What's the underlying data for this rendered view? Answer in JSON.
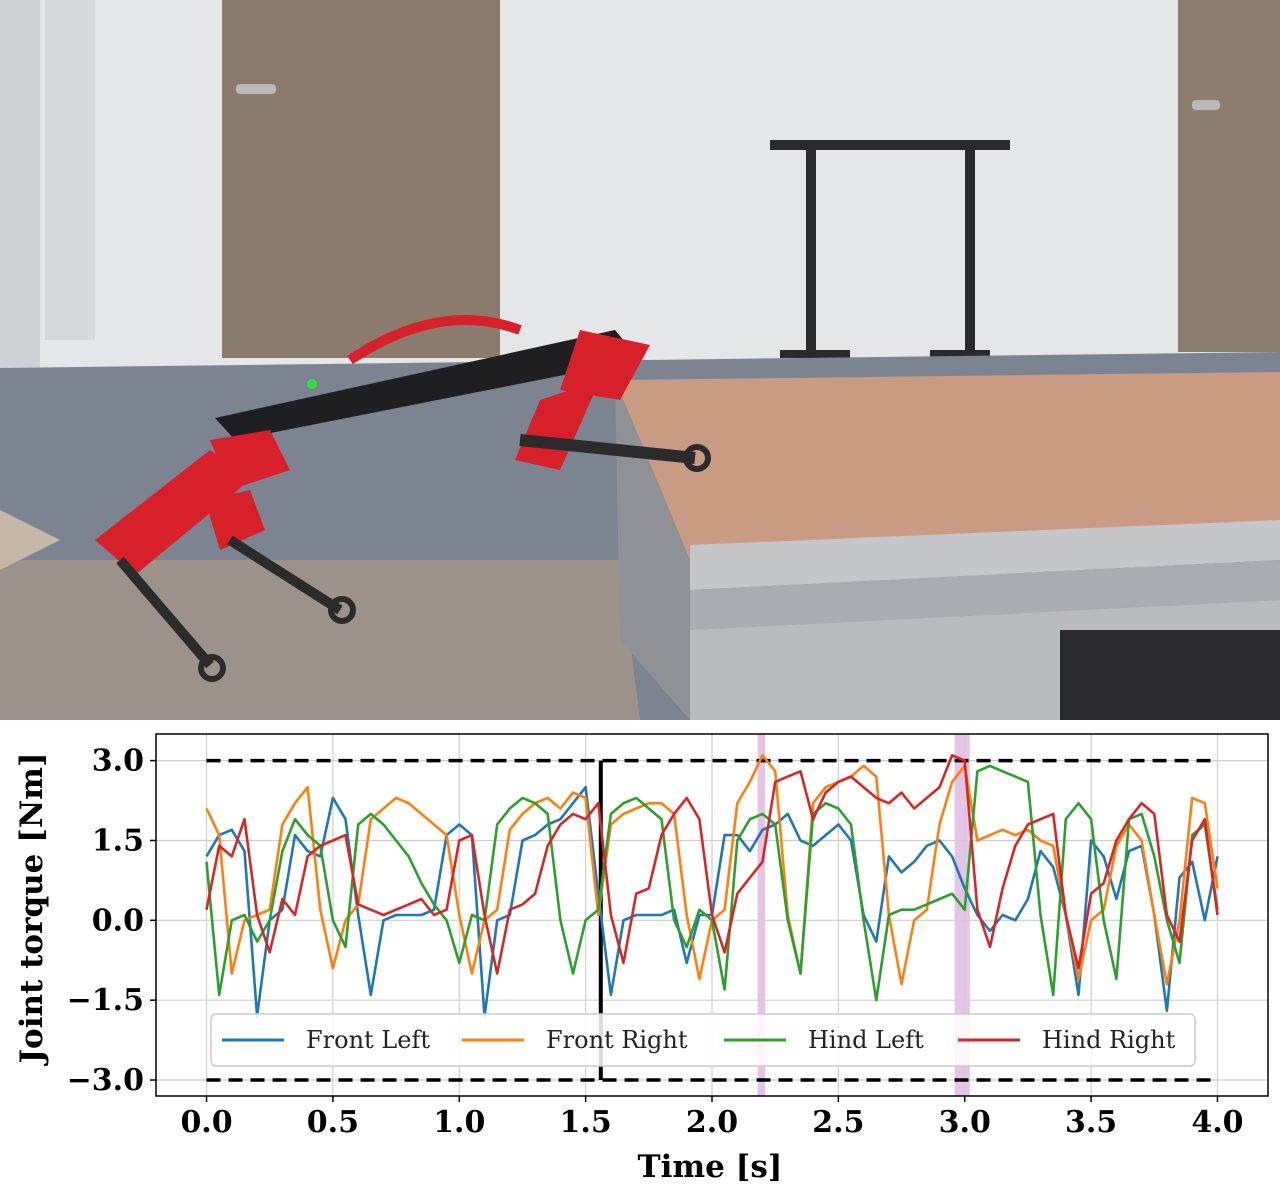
{
  "photo": {
    "scene": "quadruped-robot-climbing-platform"
  },
  "chart_data": {
    "type": "line",
    "title": "",
    "xlabel": "Time [s]",
    "ylabel": "Joint torque [Nm]",
    "xlim": [
      -0.2,
      4.2
    ],
    "ylim": [
      -3.3,
      3.5
    ],
    "xticks": [
      "0.0",
      "0.5",
      "1.0",
      "1.5",
      "2.0",
      "2.5",
      "3.0",
      "3.5",
      "4.0"
    ],
    "yticks": [
      "3.0",
      "1.5",
      "0.0",
      "−1.5",
      "−3.0"
    ],
    "xtick_values": [
      0.0,
      0.5,
      1.0,
      1.5,
      2.0,
      2.5,
      3.0,
      3.5,
      4.0
    ],
    "ytick_values": [
      3.0,
      1.5,
      0.0,
      -1.5,
      -3.0
    ],
    "grid": true,
    "legend_location": "lower-center",
    "torque_limits": [
      3.0,
      -3.0
    ],
    "vertical_marker_x": 1.56,
    "highlight_spans": [
      [
        2.18,
        2.21
      ],
      [
        2.96,
        3.02
      ]
    ],
    "series": [
      {
        "name": "Front Left",
        "color": "#1f77b4",
        "x": [
          0.0,
          0.05,
          0.1,
          0.15,
          0.2,
          0.25,
          0.3,
          0.35,
          0.4,
          0.45,
          0.5,
          0.55,
          0.6,
          0.65,
          0.7,
          0.75,
          0.8,
          0.85,
          0.9,
          0.95,
          1.0,
          1.05,
          1.1,
          1.15,
          1.2,
          1.25,
          1.3,
          1.35,
          1.4,
          1.45,
          1.5,
          1.55,
          1.6,
          1.65,
          1.7,
          1.75,
          1.8,
          1.85,
          1.9,
          1.95,
          2.0,
          2.05,
          2.1,
          2.15,
          2.2,
          2.25,
          2.3,
          2.35,
          2.4,
          2.45,
          2.5,
          2.55,
          2.6,
          2.65,
          2.7,
          2.75,
          2.8,
          2.85,
          2.9,
          2.95,
          3.0,
          3.05,
          3.1,
          3.15,
          3.2,
          3.25,
          3.3,
          3.35,
          3.4,
          3.45,
          3.5,
          3.55,
          3.6,
          3.65,
          3.7,
          3.75,
          3.8,
          3.85,
          3.9,
          3.95,
          4.0
        ],
        "y": [
          1.2,
          1.6,
          1.7,
          1.3,
          -1.8,
          0.0,
          0.2,
          1.6,
          1.3,
          1.2,
          2.3,
          1.9,
          0.1,
          -1.4,
          0.0,
          0.1,
          0.1,
          0.1,
          0.2,
          1.6,
          1.8,
          1.6,
          -1.8,
          0.0,
          0.1,
          1.5,
          1.6,
          1.8,
          1.9,
          2.2,
          2.5,
          0.5,
          -1.4,
          0.0,
          0.1,
          0.1,
          0.1,
          0.2,
          -0.8,
          0.1,
          0.1,
          1.6,
          1.6,
          1.3,
          1.7,
          1.8,
          2.0,
          1.5,
          1.4,
          1.6,
          1.8,
          1.5,
          0.1,
          -0.4,
          1.2,
          0.9,
          1.1,
          1.4,
          1.5,
          1.2,
          0.6,
          0.1,
          -0.2,
          0.1,
          0.0,
          0.4,
          1.3,
          1.0,
          0.1,
          -1.4,
          1.5,
          1.2,
          0.4,
          1.3,
          1.4,
          0.1,
          -1.7,
          0.8,
          1.1,
          0.0,
          1.2
        ]
      },
      {
        "name": "Front Right",
        "color": "#ff7f0e",
        "x": [
          0.0,
          0.05,
          0.1,
          0.15,
          0.2,
          0.25,
          0.3,
          0.35,
          0.4,
          0.45,
          0.5,
          0.55,
          0.6,
          0.65,
          0.7,
          0.75,
          0.8,
          0.85,
          0.9,
          0.95,
          1.0,
          1.05,
          1.1,
          1.15,
          1.2,
          1.25,
          1.3,
          1.35,
          1.4,
          1.45,
          1.5,
          1.55,
          1.6,
          1.65,
          1.7,
          1.75,
          1.8,
          1.85,
          1.9,
          1.95,
          2.0,
          2.05,
          2.1,
          2.15,
          2.2,
          2.25,
          2.3,
          2.35,
          2.4,
          2.45,
          2.5,
          2.55,
          2.6,
          2.65,
          2.7,
          2.75,
          2.8,
          2.85,
          2.9,
          2.95,
          3.0,
          3.05,
          3.1,
          3.15,
          3.2,
          3.25,
          3.3,
          3.35,
          3.4,
          3.45,
          3.5,
          3.55,
          3.6,
          3.65,
          3.7,
          3.75,
          3.8,
          3.85,
          3.9,
          3.95,
          4.0
        ],
        "y": [
          2.1,
          1.6,
          -1.0,
          0.0,
          0.1,
          0.2,
          1.8,
          2.2,
          2.5,
          0.2,
          -0.9,
          0.0,
          0.3,
          1.9,
          2.1,
          2.3,
          2.2,
          2.0,
          1.8,
          1.6,
          0.1,
          -1.0,
          0.0,
          0.2,
          1.7,
          2.0,
          2.2,
          2.3,
          2.1,
          2.4,
          2.3,
          0.1,
          1.8,
          2.0,
          2.1,
          2.2,
          2.2,
          2.0,
          0.1,
          -1.1,
          0.0,
          0.2,
          2.2,
          2.6,
          3.1,
          2.8,
          0.1,
          -1.0,
          2.2,
          2.5,
          2.6,
          2.7,
          2.9,
          2.7,
          0.1,
          -1.2,
          0.0,
          0.2,
          1.8,
          2.6,
          2.9,
          1.5,
          1.6,
          1.7,
          1.6,
          1.7,
          1.5,
          1.4,
          0.1,
          -1.1,
          0.0,
          0.2,
          1.4,
          1.8,
          1.5,
          0.1,
          -1.2,
          0.0,
          2.3,
          2.2,
          0.6
        ]
      },
      {
        "name": "Hind Left",
        "color": "#2ca02c",
        "x": [
          0.0,
          0.05,
          0.1,
          0.15,
          0.2,
          0.25,
          0.3,
          0.35,
          0.4,
          0.45,
          0.5,
          0.55,
          0.6,
          0.65,
          0.7,
          0.75,
          0.8,
          0.85,
          0.9,
          0.95,
          1.0,
          1.05,
          1.1,
          1.15,
          1.2,
          1.25,
          1.3,
          1.35,
          1.4,
          1.45,
          1.5,
          1.55,
          1.6,
          1.65,
          1.7,
          1.75,
          1.8,
          1.85,
          1.9,
          1.95,
          2.0,
          2.05,
          2.1,
          2.15,
          2.2,
          2.25,
          2.3,
          2.35,
          2.4,
          2.45,
          2.5,
          2.55,
          2.6,
          2.65,
          2.7,
          2.75,
          2.8,
          2.85,
          2.9,
          2.95,
          3.0,
          3.05,
          3.1,
          3.15,
          3.2,
          3.25,
          3.3,
          3.35,
          3.4,
          3.45,
          3.5,
          3.55,
          3.6,
          3.65,
          3.7,
          3.75,
          3.8,
          3.85,
          3.9,
          3.95,
          4.0
        ],
        "y": [
          1.1,
          -1.4,
          0.0,
          0.1,
          -0.4,
          0.0,
          1.3,
          1.9,
          1.6,
          1.4,
          0.0,
          -0.5,
          1.8,
          2.0,
          1.8,
          1.5,
          1.2,
          0.7,
          0.3,
          0.0,
          -0.8,
          0.1,
          0.0,
          1.8,
          2.1,
          2.3,
          2.2,
          2.0,
          0.0,
          -1.0,
          0.0,
          0.2,
          2.0,
          2.2,
          2.3,
          2.1,
          1.9,
          0.0,
          -0.5,
          0.2,
          0.0,
          -1.3,
          1.5,
          1.9,
          2.0,
          1.8,
          0.0,
          -1.0,
          2.0,
          2.2,
          2.1,
          1.8,
          0.0,
          -1.5,
          0.1,
          0.2,
          0.2,
          0.3,
          0.4,
          0.5,
          0.2,
          2.8,
          2.9,
          2.8,
          2.7,
          2.6,
          0.1,
          -1.4,
          1.9,
          2.2,
          1.9,
          0.0,
          -1.1,
          1.9,
          2.0,
          1.2,
          0.0,
          -0.8,
          1.6,
          1.8,
          0.2
        ]
      },
      {
        "name": "Hind Right",
        "color": "#d62728",
        "x": [
          0.0,
          0.05,
          0.1,
          0.15,
          0.2,
          0.25,
          0.3,
          0.35,
          0.4,
          0.45,
          0.5,
          0.55,
          0.6,
          0.65,
          0.7,
          0.75,
          0.8,
          0.85,
          0.9,
          0.95,
          1.0,
          1.05,
          1.1,
          1.15,
          1.2,
          1.25,
          1.3,
          1.35,
          1.4,
          1.45,
          1.5,
          1.55,
          1.6,
          1.65,
          1.7,
          1.75,
          1.8,
          1.85,
          1.9,
          1.95,
          2.0,
          2.05,
          2.1,
          2.15,
          2.2,
          2.25,
          2.3,
          2.35,
          2.4,
          2.45,
          2.5,
          2.55,
          2.6,
          2.65,
          2.7,
          2.75,
          2.8,
          2.85,
          2.9,
          2.95,
          3.0,
          3.05,
          3.1,
          3.15,
          3.2,
          3.25,
          3.3,
          3.35,
          3.4,
          3.45,
          3.5,
          3.55,
          3.6,
          3.65,
          3.7,
          3.75,
          3.8,
          3.85,
          3.9,
          3.95,
          4.0
        ],
        "y": [
          0.2,
          1.4,
          1.2,
          1.9,
          0.1,
          -0.6,
          0.4,
          0.1,
          1.2,
          1.4,
          1.5,
          1.6,
          0.3,
          0.2,
          0.1,
          0.2,
          0.3,
          0.4,
          0.1,
          0.2,
          1.5,
          1.6,
          0.1,
          -1.0,
          0.2,
          0.3,
          0.5,
          1.4,
          1.8,
          2.0,
          1.9,
          2.2,
          0.1,
          -0.8,
          0.5,
          0.6,
          1.6,
          2.0,
          2.3,
          1.9,
          0.1,
          -0.6,
          0.5,
          0.8,
          1.1,
          2.6,
          2.7,
          2.8,
          1.9,
          2.4,
          2.6,
          2.7,
          2.5,
          2.3,
          2.2,
          2.4,
          2.1,
          2.3,
          2.5,
          3.1,
          3.0,
          0.2,
          -0.5,
          0.6,
          1.4,
          1.8,
          1.9,
          2.0,
          0.1,
          -0.9,
          0.5,
          0.7,
          1.5,
          1.9,
          2.2,
          2.0,
          0.1,
          -0.4,
          1.5,
          1.9,
          0.1
        ]
      }
    ]
  }
}
